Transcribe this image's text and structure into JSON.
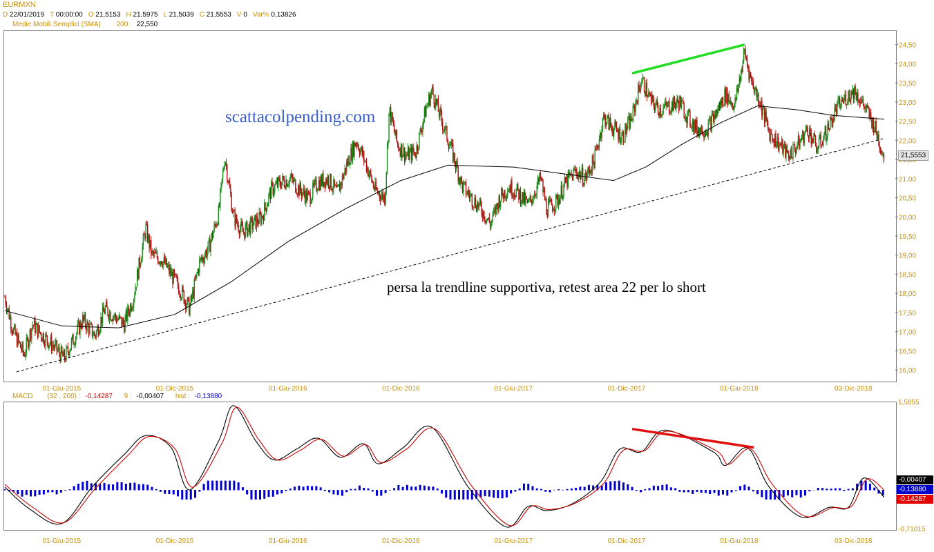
{
  "header": {
    "symbol": "EURMXN",
    "ohlc": [
      {
        "k": "D",
        "v": "22/01/2019"
      },
      {
        "k": "T",
        "v": "00:00:00"
      },
      {
        "k": "O",
        "v": "21,5153"
      },
      {
        "k": "H",
        "v": "21,5975"
      },
      {
        "k": "L",
        "v": "21,5039"
      },
      {
        "k": "C",
        "v": "21,5553"
      },
      {
        "k": "V",
        "v": "0"
      },
      {
        "k": "Var%",
        "v": "0,13826"
      }
    ],
    "sma_label": "Medie Mobili Semplici (SMA)",
    "sma_period": "200 :",
    "sma_value": "22,550"
  },
  "price_panel": {
    "last_price_tag": "21,5553",
    "watermark": "scattacolpending.com",
    "annotation": "persa la trendline supportiva, retest area 22 per lo short"
  },
  "macd_panel": {
    "label": "MACD",
    "params": "(32 , 200) :",
    "macd_value": "-0,14287",
    "signal_period": "9 :",
    "signal_value": "-0,00407",
    "hist_label": "hist :",
    "hist_value": "-0,13880",
    "tags": [
      "-0,00407",
      "-0,13880",
      "-0,14287"
    ],
    "ymax_label": "1,5855",
    "ymin_label": "-0,71015"
  },
  "chart_data": [
    {
      "type": "candlestick",
      "title": "EURMXN",
      "ylim": [
        15.75,
        24.8
      ],
      "yticks": [
        "16,00",
        "16,50",
        "17,00",
        "17,50",
        "18,00",
        "18,50",
        "19,00",
        "19,50",
        "20,00",
        "20,50",
        "21,00",
        "21,50",
        "22,00",
        "22,50",
        "23,00",
        "23,50",
        "24,00",
        "24,50"
      ],
      "xticks": [
        "01-Giu-2015",
        "01-Dic-2015",
        "01-Giu-2016",
        "01-Dic-2016",
        "01-Giu-2017",
        "01-Dic-2017",
        "01-Giu-2018",
        "03-Dic-2018"
      ],
      "x_range": [
        "2015-03-01",
        "2019-01-22"
      ],
      "close_path": [
        [
          "2015-03-01",
          17.9
        ],
        [
          "2015-03-15",
          17.0
        ],
        [
          "2015-04-01",
          16.4
        ],
        [
          "2015-04-15",
          17.2
        ],
        [
          "2015-05-01",
          16.9
        ],
        [
          "2015-05-20",
          16.6
        ],
        [
          "2015-06-05",
          16.3
        ],
        [
          "2015-06-20",
          16.8
        ],
        [
          "2015-07-05",
          17.3
        ],
        [
          "2015-07-25",
          16.9
        ],
        [
          "2015-08-10",
          17.6
        ],
        [
          "2015-08-25",
          17.4
        ],
        [
          "2015-09-10",
          17.2
        ],
        [
          "2015-09-25",
          17.9
        ],
        [
          "2015-10-15",
          19.7
        ],
        [
          "2015-10-25",
          19.0
        ],
        [
          "2015-11-10",
          18.9
        ],
        [
          "2015-11-25",
          18.5
        ],
        [
          "2015-12-10",
          18.1
        ],
        [
          "2015-12-25",
          17.6
        ],
        [
          "2016-01-10",
          18.8
        ],
        [
          "2016-01-25",
          19.2
        ],
        [
          "2016-02-10",
          20.1
        ],
        [
          "2016-02-20",
          21.6
        ],
        [
          "2016-03-05",
          20.0
        ],
        [
          "2016-03-20",
          19.6
        ],
        [
          "2016-04-05",
          19.8
        ],
        [
          "2016-04-20",
          20.0
        ],
        [
          "2016-05-05",
          20.7
        ],
        [
          "2016-05-20",
          20.9
        ],
        [
          "2016-06-05",
          21.0
        ],
        [
          "2016-06-20",
          20.7
        ],
        [
          "2016-07-05",
          20.5
        ],
        [
          "2016-07-20",
          20.9
        ],
        [
          "2016-08-05",
          21.0
        ],
        [
          "2016-08-20",
          20.6
        ],
        [
          "2016-09-05",
          21.4
        ],
        [
          "2016-09-20",
          22.0
        ],
        [
          "2016-10-05",
          21.4
        ],
        [
          "2016-10-20",
          20.7
        ],
        [
          "2016-11-05",
          20.5
        ],
        [
          "2016-11-12",
          22.8
        ],
        [
          "2016-11-25",
          21.9
        ],
        [
          "2016-12-10",
          21.6
        ],
        [
          "2016-12-25",
          21.7
        ],
        [
          "2017-01-10",
          22.8
        ],
        [
          "2017-01-20",
          23.3
        ],
        [
          "2017-02-05",
          22.5
        ],
        [
          "2017-02-20",
          21.8
        ],
        [
          "2017-03-10",
          20.8
        ],
        [
          "2017-03-25",
          20.5
        ],
        [
          "2017-04-10",
          20.2
        ],
        [
          "2017-04-25",
          19.8
        ],
        [
          "2017-05-10",
          20.5
        ],
        [
          "2017-05-25",
          20.8
        ],
        [
          "2017-06-10",
          20.6
        ],
        [
          "2017-06-25",
          20.3
        ],
        [
          "2017-07-15",
          21.0
        ],
        [
          "2017-07-25",
          20.2
        ],
        [
          "2017-08-10",
          20.4
        ],
        [
          "2017-08-25",
          20.9
        ],
        [
          "2017-09-10",
          21.2
        ],
        [
          "2017-09-25",
          21.0
        ],
        [
          "2017-10-10",
          21.5
        ],
        [
          "2017-10-25",
          22.6
        ],
        [
          "2017-11-10",
          22.3
        ],
        [
          "2017-11-25",
          22.1
        ],
        [
          "2017-12-10",
          22.6
        ],
        [
          "2017-12-25",
          23.6
        ],
        [
          "2018-01-10",
          23.0
        ],
        [
          "2018-01-25",
          22.8
        ],
        [
          "2018-02-10",
          22.9
        ],
        [
          "2018-02-25",
          23.0
        ],
        [
          "2018-03-10",
          22.6
        ],
        [
          "2018-03-25",
          22.3
        ],
        [
          "2018-04-10",
          22.3
        ],
        [
          "2018-04-25",
          22.7
        ],
        [
          "2018-05-10",
          23.2
        ],
        [
          "2018-05-25",
          22.9
        ],
        [
          "2018-06-10",
          24.3
        ],
        [
          "2018-06-20",
          23.6
        ],
        [
          "2018-07-05",
          23.0
        ],
        [
          "2018-07-20",
          22.2
        ],
        [
          "2018-08-05",
          21.9
        ],
        [
          "2018-08-20",
          21.6
        ],
        [
          "2018-09-05",
          21.9
        ],
        [
          "2018-09-20",
          22.3
        ],
        [
          "2018-10-05",
          21.8
        ],
        [
          "2018-10-20",
          22.2
        ],
        [
          "2018-11-05",
          22.8
        ],
        [
          "2018-11-20",
          23.1
        ],
        [
          "2018-12-05",
          23.3
        ],
        [
          "2018-12-20",
          22.9
        ],
        [
          "2019-01-05",
          22.4
        ],
        [
          "2019-01-22",
          21.56
        ]
      ],
      "sma200": [
        [
          "2015-03-01",
          17.55
        ],
        [
          "2015-06-01",
          17.15
        ],
        [
          "2015-09-01",
          17.1
        ],
        [
          "2015-12-01",
          17.45
        ],
        [
          "2016-03-01",
          18.3
        ],
        [
          "2016-06-01",
          19.35
        ],
        [
          "2016-09-01",
          20.2
        ],
        [
          "2016-12-01",
          20.95
        ],
        [
          "2017-02-15",
          21.35
        ],
        [
          "2017-06-01",
          21.3
        ],
        [
          "2017-09-01",
          21.1
        ],
        [
          "2017-11-10",
          20.95
        ],
        [
          "2018-01-01",
          21.3
        ],
        [
          "2018-03-01",
          21.9
        ],
        [
          "2018-05-01",
          22.45
        ],
        [
          "2018-07-01",
          22.9
        ],
        [
          "2018-09-01",
          22.8
        ],
        [
          "2018-11-01",
          22.65
        ],
        [
          "2019-01-22",
          22.55
        ]
      ],
      "trendline": [
        [
          "2015-03-20",
          15.95
        ],
        [
          "2019-01-22",
          22.05
        ]
      ],
      "divergence_line": [
        [
          "2017-12-10",
          23.75
        ],
        [
          "2018-06-10",
          24.5
        ]
      ]
    },
    {
      "type": "line",
      "title": "MACD",
      "ylim": [
        -0.71015,
        1.5855
      ],
      "series": [
        {
          "name": "MACD (32, 200)",
          "color": "#000000",
          "values": [
            [
              "2015-03-01",
              0.05
            ],
            [
              "2015-04-10",
              -0.35
            ],
            [
              "2015-06-01",
              -0.62
            ],
            [
              "2015-07-20",
              0.05
            ],
            [
              "2015-09-10",
              0.65
            ],
            [
              "2015-10-15",
              1.0
            ],
            [
              "2015-11-25",
              0.78
            ],
            [
              "2015-12-25",
              0.0
            ],
            [
              "2016-02-10",
              0.9
            ],
            [
              "2016-03-05",
              1.55
            ],
            [
              "2016-04-10",
              0.9
            ],
            [
              "2016-05-10",
              0.55
            ],
            [
              "2016-06-15",
              0.75
            ],
            [
              "2016-07-20",
              0.95
            ],
            [
              "2016-08-25",
              0.6
            ],
            [
              "2016-10-01",
              0.85
            ],
            [
              "2016-10-25",
              0.48
            ],
            [
              "2016-12-05",
              0.78
            ],
            [
              "2017-01-20",
              1.15
            ],
            [
              "2017-03-20",
              0.05
            ],
            [
              "2017-05-20",
              -0.68
            ],
            [
              "2017-06-25",
              -0.3
            ],
            [
              "2017-07-25",
              -0.38
            ],
            [
              "2017-09-05",
              -0.25
            ],
            [
              "2017-10-20",
              0.15
            ],
            [
              "2017-11-20",
              0.75
            ],
            [
              "2017-12-25",
              0.7
            ],
            [
              "2018-02-01",
              1.1
            ],
            [
              "2018-04-20",
              0.7
            ],
            [
              "2018-05-10",
              0.45
            ],
            [
              "2018-06-15",
              0.77
            ],
            [
              "2018-07-20",
              0.05
            ],
            [
              "2018-09-10",
              -0.5
            ],
            [
              "2018-10-25",
              -0.32
            ],
            [
              "2018-11-25",
              -0.32
            ],
            [
              "2018-12-20",
              0.22
            ],
            [
              "2019-01-22",
              -0.14
            ]
          ]
        },
        {
          "name": "Signal (9)",
          "color": "#cc0000",
          "values": [
            [
              "2015-03-01",
              0.1
            ],
            [
              "2015-04-15",
              -0.32
            ],
            [
              "2015-06-05",
              -0.6
            ],
            [
              "2015-07-25",
              0.02
            ],
            [
              "2015-09-15",
              0.62
            ],
            [
              "2015-10-20",
              0.98
            ],
            [
              "2015-12-01",
              0.76
            ],
            [
              "2015-12-30",
              0.05
            ],
            [
              "2016-02-15",
              0.85
            ],
            [
              "2016-03-10",
              1.52
            ],
            [
              "2016-04-15",
              0.92
            ],
            [
              "2016-05-15",
              0.55
            ],
            [
              "2016-06-20",
              0.72
            ],
            [
              "2016-07-25",
              0.93
            ],
            [
              "2016-08-30",
              0.62
            ],
            [
              "2016-10-05",
              0.83
            ],
            [
              "2016-10-30",
              0.5
            ],
            [
              "2016-12-10",
              0.75
            ],
            [
              "2017-01-25",
              1.12
            ],
            [
              "2017-03-25",
              0.08
            ],
            [
              "2017-05-25",
              -0.65
            ],
            [
              "2017-06-30",
              -0.3
            ],
            [
              "2017-07-30",
              -0.36
            ],
            [
              "2017-09-10",
              -0.24
            ],
            [
              "2017-10-25",
              0.12
            ],
            [
              "2017-11-25",
              0.72
            ],
            [
              "2017-12-30",
              0.72
            ],
            [
              "2018-02-05",
              1.08
            ],
            [
              "2018-04-25",
              0.72
            ],
            [
              "2018-05-15",
              0.47
            ],
            [
              "2018-06-20",
              0.75
            ],
            [
              "2018-07-25",
              0.1
            ],
            [
              "2018-09-15",
              -0.48
            ],
            [
              "2018-10-30",
              -0.33
            ],
            [
              "2018-11-30",
              -0.3
            ],
            [
              "2018-12-25",
              0.2
            ],
            [
              "2019-01-22",
              -0.004
            ]
          ]
        }
      ],
      "histogram": {
        "name": "hist",
        "color": "#0000cc",
        "range": [
          -0.17,
          0.17
        ],
        "last": -0.1388
      },
      "divergence_line": [
        [
          "2017-12-10",
          1.12
        ],
        [
          "2018-06-25",
          0.78
        ]
      ],
      "xticks": [
        "01-Giu-2015",
        "01-Dic-2015",
        "01-Giu-2016",
        "01-Dic-2016",
        "01-Giu-2017",
        "01-Dic-2017",
        "01-Giu-2018",
        "03-Dic-2018"
      ]
    }
  ]
}
